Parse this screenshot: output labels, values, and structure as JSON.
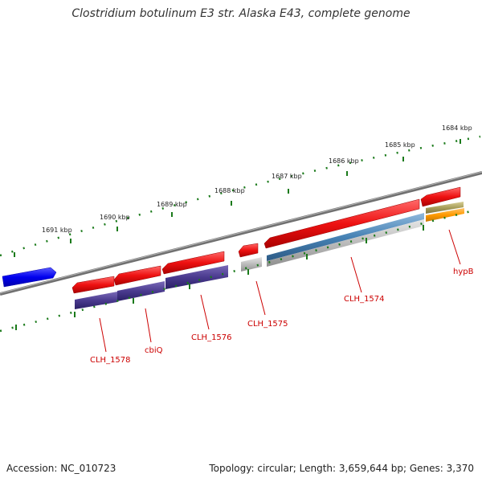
{
  "title": "Clostridium botulinum E3 str. Alaska E43, complete genome",
  "footer": {
    "accession": "Accession: NC_010723",
    "stats": "Topology: circular; Length: 3,659,644 bp; Genes: 3,370"
  },
  "colors": {
    "backbone": "#777777",
    "forward_gene": "#ee1111",
    "reverse_gene": "#0000ee",
    "tick": "#1a7a1a",
    "label": "#cc0000"
  },
  "kbp_labels": [
    "1691 kbp",
    "1690 kbp",
    "1689 kbp",
    "1688 kbp",
    "1687 kbp",
    "1686 kbp",
    "1685 kbp",
    "1684 kbp"
  ],
  "gene_labels": [
    "CLH_1578",
    "cbiQ",
    "CLH_1576",
    "CLH_1575",
    "CLH_1574",
    "hypB"
  ]
}
